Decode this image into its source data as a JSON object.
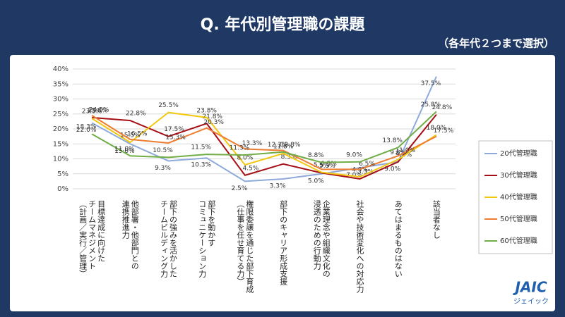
{
  "chart_data": {
    "type": "line",
    "title": "Q.  年代別管理職の課題",
    "subtitle": "（各年代２つまで選択）",
    "annotations": [
      "JAIC",
      "ジェイック"
    ],
    "categories": [
      "目標達成に向けた\nチームマネジメント\n（計画／実行／管理）",
      "他部署・他部門との\n連携推進力",
      "部下の強みを活かした\nチームビルディング力",
      "部下を動かす\nコミュニケーション力",
      "権限委譲を通じた部下育成\n（仕事を任せ育てる力）",
      "部下のキャリア形成支援",
      "企業理念や組織文化の\n浸透のための行動力",
      "社会や技術変化への対応力",
      "あてはまるものはない",
      "該当者なし"
    ],
    "series": [
      {
        "name": "20代管理職",
        "color": "#8eaadb",
        "values": [
          22.0,
          15.0,
          9.3,
          10.3,
          2.5,
          3.3,
          5.0,
          7.0,
          9.0,
          37.5
        ],
        "value_labels": [
          "22.0%",
          "15.0%",
          "9.3%",
          "10.3%",
          "2.5%",
          "3.3%",
          "5.0%",
          "7.0%",
          "9.0%",
          "37.5%"
        ]
      },
      {
        "name": "30代管理職",
        "color": "#a50f15",
        "values": [
          23.8,
          22.8,
          17.5,
          21.8,
          4.5,
          8.3,
          5.3,
          3.3,
          9.0,
          24.8
        ],
        "value_labels": [
          "23.8%",
          "22.8%",
          "17.5%",
          "21.8%",
          "4.5%",
          "8.3%",
          "5.3%",
          "3.3%",
          "9.0%",
          "24.8%"
        ]
      },
      {
        "name": "40代管理職",
        "color": "#f2c811",
        "values": [
          23.5,
          15.5,
          25.5,
          23.8,
          8.0,
          11.8,
          5.5,
          4.0,
          9.8,
          18.0
        ],
        "value_labels": [
          "23.5%",
          "15.5%",
          "25.5%",
          "23.8%",
          "8.0%",
          "11.8%",
          "5.5%",
          "4.0%",
          "9.8%",
          "18.0%"
        ]
      },
      {
        "name": "50代管理職",
        "color": "#ed7d31",
        "values": [
          24.5,
          16.5,
          15.3,
          20.3,
          13.3,
          12.8,
          6.5,
          6.5,
          11.0,
          17.5
        ],
        "value_labels": [
          "24.5%",
          "16.5%",
          "15.3%",
          "20.3%",
          "13.3%",
          "12.8%",
          "6.5%",
          "6.5%",
          "11.0%",
          "17.5%"
        ]
      },
      {
        "name": "60代管理職",
        "color": "#70ad47",
        "values": [
          18.3,
          11.0,
          10.5,
          11.5,
          11.3,
          12.3,
          8.8,
          9.0,
          13.8,
          25.8
        ],
        "value_labels": [
          "18.3%",
          "11.0%",
          "10.5%",
          "11.5%",
          "11.3%",
          "12.3%",
          "8.8%",
          "9.0%",
          "13.8%",
          "25.8%"
        ]
      }
    ],
    "ylim": [
      0,
      40
    ],
    "yticks": [
      {
        "value": 0,
        "label": "0%"
      },
      {
        "value": 5,
        "label": "5%"
      },
      {
        "value": 10,
        "label": "10%"
      },
      {
        "value": 15,
        "label": "15%"
      },
      {
        "value": 20,
        "label": "20%"
      },
      {
        "value": 25,
        "label": "25%"
      },
      {
        "value": 30,
        "label": "30%"
      },
      {
        "value": 35,
        "label": "35%"
      },
      {
        "value": 40,
        "label": "40%"
      }
    ],
    "grid": true,
    "legend": "right"
  }
}
